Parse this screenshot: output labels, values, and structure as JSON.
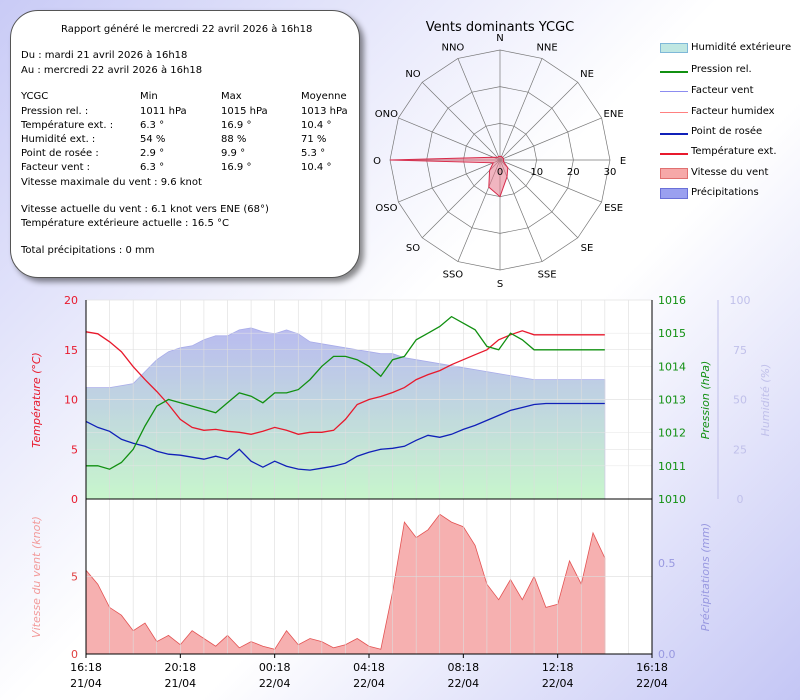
{
  "report": {
    "title": "Rapport généré le mercredi 22 avril 2026 à 16h18",
    "from": "Du : mardi 21 avril 2026 à 16h18",
    "to": "Au : mercredi 22 avril 2026 à 16h18",
    "headers": [
      "YCGC",
      "Min",
      "Max",
      "Moyenne"
    ],
    "rows": [
      [
        "Pression rel. :",
        "1011 hPa",
        "1015 hPa",
        "1013 hPa"
      ],
      [
        "Température ext. :",
        "6.3 °",
        "16.9 °",
        "10.4 °"
      ],
      [
        "Humidité ext. :",
        "54 %",
        "88 %",
        "71 %"
      ],
      [
        "Point de rosée :",
        "2.9 °",
        "9.9 °",
        "5.3 °"
      ],
      [
        "Facteur vent :",
        "6.3 °",
        "16.9 °",
        "10.4 °"
      ]
    ],
    "max_wind": "Vitesse maximale du vent : 9.6 knot",
    "current_wind": "Vitesse actuelle du vent : 6.1 knot vers  ENE (68°)",
    "current_temp": "Température extérieure actuelle :  16.5 °C",
    "total_rain": "Total précipitations :  0 mm"
  },
  "colors": {
    "temperature": "#e8192c",
    "pressure": "#119011",
    "humidity_fill": "#c6c8f2",
    "humidity_legend": "#bfe7e2",
    "dewpoint": "#1020b8",
    "windchill": "#8c8cf0",
    "humidex": "#ff8080",
    "wind_fill": "#f6a8a8",
    "wind_line": "#e04040",
    "rain": "#9aa0f0",
    "axis_humidity": "#c0c0ea",
    "wind_axis_label": "#f29a9a",
    "rain_axis_label": "#9898e0"
  },
  "chart_data": [
    {
      "type": "radar",
      "title": "Vents dominants YCGC",
      "directions": [
        "N",
        "NNE",
        "NE",
        "ENE",
        "E",
        "ESE",
        "SE",
        "SSE",
        "S",
        "SSO",
        "SO",
        "OSO",
        "O",
        "ONO",
        "NO",
        "NNO"
      ],
      "radial_ticks": [
        0,
        10,
        20,
        30
      ],
      "rmax": 30,
      "values": [
        1,
        1,
        1,
        1,
        1,
        1,
        3,
        5,
        10,
        8,
        4,
        2,
        30,
        2,
        1,
        1
      ]
    },
    {
      "type": "line",
      "x_ticks": [
        {
          "time": "16:18",
          "date": "21/04"
        },
        {
          "time": "20:18",
          "date": "21/04"
        },
        {
          "time": "00:18",
          "date": "22/04"
        },
        {
          "time": "04:18",
          "date": "22/04"
        },
        {
          "time": "08:18",
          "date": "22/04"
        },
        {
          "time": "12:18",
          "date": "22/04"
        },
        {
          "time": "16:18",
          "date": "22/04"
        }
      ],
      "x_range_hours": [
        0,
        24
      ],
      "temperature_axis": {
        "label": "Température (°C)",
        "ticks": [
          0,
          5,
          10,
          15,
          20
        ],
        "ylim": [
          0,
          20
        ]
      },
      "pressure_axis": {
        "label": "Pression (hPa)",
        "ticks": [
          1010,
          1011,
          1012,
          1013,
          1014,
          1015,
          1016
        ],
        "ylim": [
          1010,
          1016
        ]
      },
      "humidity_axis": {
        "label": "Humidité (%)",
        "ticks": [
          0,
          25,
          50,
          75,
          100
        ],
        "ylim": [
          0,
          100
        ]
      },
      "legend": [
        "Humidité extérieure",
        "Pression rel.",
        "Facteur vent",
        "Facteur humidex",
        "Point de rosée",
        "Température ext.",
        "Vitesse du vent",
        "Précipitations"
      ],
      "x_hours": [
        0,
        0.5,
        1,
        1.5,
        2,
        2.5,
        3,
        3.5,
        4,
        4.5,
        5,
        5.5,
        6,
        6.5,
        7,
        7.5,
        8,
        8.5,
        9,
        9.5,
        10,
        10.5,
        11,
        11.5,
        12,
        12.5,
        13,
        13.5,
        14,
        14.5,
        15,
        15.5,
        16,
        16.5,
        17,
        17.5,
        18,
        18.5,
        19,
        19.5,
        20,
        20.5,
        21,
        21.5,
        22
      ],
      "series": [
        {
          "name": "Température ext.",
          "axis": "temperature",
          "values": [
            16.8,
            16.6,
            15.8,
            14.8,
            13.3,
            12.0,
            10.8,
            9.5,
            8.0,
            7.2,
            6.9,
            7.0,
            6.8,
            6.7,
            6.5,
            6.8,
            7.2,
            6.9,
            6.5,
            6.7,
            6.7,
            6.9,
            8.0,
            9.5,
            10.0,
            10.3,
            10.7,
            11.2,
            12.0,
            12.5,
            12.9,
            13.5,
            14.0,
            14.5,
            15.0,
            16.0,
            16.5,
            16.9,
            16.5,
            16.5,
            16.5,
            16.5,
            16.5,
            16.5,
            16.5
          ]
        },
        {
          "name": "Point de rosée",
          "axis": "temperature",
          "values": [
            7.8,
            7.2,
            6.8,
            6.0,
            5.6,
            5.3,
            4.8,
            4.5,
            4.4,
            4.2,
            4.0,
            4.3,
            4.0,
            5.0,
            3.8,
            3.2,
            3.8,
            3.3,
            3.0,
            2.9,
            3.1,
            3.3,
            3.6,
            4.3,
            4.7,
            5.0,
            5.1,
            5.3,
            5.9,
            6.4,
            6.2,
            6.5,
            7.0,
            7.4,
            7.9,
            8.4,
            8.9,
            9.2,
            9.5,
            9.6,
            9.6,
            9.6,
            9.6,
            9.6,
            9.6
          ]
        },
        {
          "name": "Pression rel.",
          "axis": "pressure",
          "values": [
            1011.0,
            1011.0,
            1010.9,
            1011.1,
            1011.5,
            1012.2,
            1012.8,
            1013.0,
            1012.9,
            1012.8,
            1012.7,
            1012.6,
            1012.9,
            1013.2,
            1013.1,
            1012.9,
            1013.2,
            1013.2,
            1013.3,
            1013.6,
            1014.0,
            1014.3,
            1014.3,
            1014.2,
            1014.0,
            1013.7,
            1014.2,
            1014.3,
            1014.8,
            1015.0,
            1015.2,
            1015.5,
            1015.3,
            1015.1,
            1014.6,
            1014.5,
            1015.0,
            1014.8,
            1014.5,
            1014.5,
            1014.5,
            1014.5,
            1014.5,
            1014.5,
            1014.5
          ]
        },
        {
          "name": "Humidité extérieure",
          "axis": "humidity",
          "values": [
            56,
            56,
            56,
            57,
            58,
            64,
            70,
            74,
            76,
            77,
            80,
            82,
            82,
            85,
            86,
            84,
            83,
            85,
            83,
            79,
            78,
            77,
            76,
            75,
            74,
            73,
            73,
            71,
            70,
            69,
            68,
            67,
            66,
            65,
            64,
            63,
            62,
            61,
            60,
            60,
            60,
            60,
            60,
            60,
            60
          ]
        }
      ]
    },
    {
      "type": "area",
      "x_ticks": [
        {
          "time": "16:18",
          "date": "21/04"
        },
        {
          "time": "20:18",
          "date": "21/04"
        },
        {
          "time": "00:18",
          "date": "22/04"
        },
        {
          "time": "04:18",
          "date": "22/04"
        },
        {
          "time": "08:18",
          "date": "22/04"
        },
        {
          "time": "12:18",
          "date": "22/04"
        },
        {
          "time": "16:18",
          "date": "22/04"
        }
      ],
      "x_range_hours": [
        0,
        24
      ],
      "wind_axis": {
        "label": "Vitesse du vent (knot)",
        "ticks": [
          0,
          5
        ],
        "ylim": [
          0,
          9.6
        ]
      },
      "rain_axis": {
        "label": "Précipitations (mm)",
        "ticks": [
          0.0,
          0.5
        ],
        "ylim": [
          0,
          0.82
        ]
      },
      "x_hours": [
        0,
        0.5,
        1,
        1.5,
        2,
        2.5,
        3,
        3.5,
        4,
        4.5,
        5,
        5.5,
        6,
        6.5,
        7,
        7.5,
        8,
        8.5,
        9,
        9.5,
        10,
        10.5,
        11,
        11.5,
        12,
        12.5,
        13,
        13.5,
        14,
        14.5,
        15,
        15.5,
        16,
        16.5,
        17,
        17.5,
        18,
        18.5,
        19,
        19.5,
        20,
        20.5,
        21,
        21.5,
        22
      ],
      "series": [
        {
          "name": "Vitesse du vent",
          "axis": "wind",
          "values": [
            5.4,
            4.5,
            3.0,
            2.5,
            1.5,
            2.0,
            0.8,
            1.2,
            0.6,
            1.5,
            1.0,
            0.5,
            1.2,
            0.4,
            0.8,
            0.5,
            0.3,
            1.5,
            0.6,
            1.0,
            0.8,
            0.4,
            0.6,
            1.0,
            0.5,
            0.3,
            4.0,
            8.5,
            7.5,
            8.0,
            9.0,
            8.5,
            8.2,
            7.0,
            4.5,
            3.5,
            4.8,
            3.5,
            5.0,
            3.0,
            3.2,
            6.0,
            4.5,
            7.8,
            6.2
          ]
        },
        {
          "name": "Précipitations",
          "axis": "rain",
          "values": [
            0,
            0,
            0,
            0,
            0,
            0,
            0,
            0,
            0,
            0,
            0,
            0,
            0,
            0,
            0,
            0,
            0,
            0,
            0,
            0,
            0,
            0,
            0,
            0,
            0,
            0,
            0,
            0,
            0,
            0,
            0,
            0,
            0,
            0,
            0,
            0,
            0,
            0,
            0,
            0,
            0,
            0,
            0,
            0,
            0
          ]
        }
      ]
    }
  ]
}
